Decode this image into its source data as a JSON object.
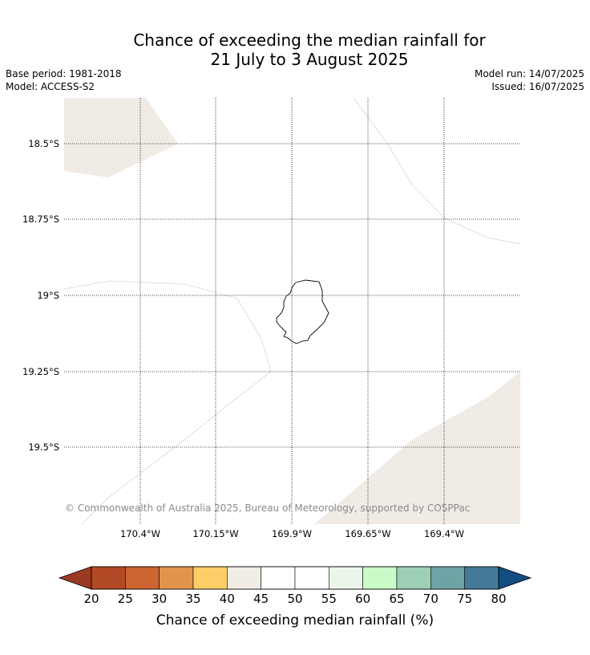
{
  "title": {
    "line1": "Chance of exceeding the median rainfall for",
    "line2": "21 July to 3 August 2025"
  },
  "meta_left": {
    "base_period": "Base period: 1981-2018",
    "model": "Model: ACCESS-S2"
  },
  "meta_right": {
    "model_run": "Model run: 14/07/2025",
    "issued": "Issued: 16/07/2025"
  },
  "map": {
    "lat_labels": [
      "18.5°S",
      "18.75°S",
      "19°S",
      "19.25°S",
      "19.5°S"
    ],
    "lon_labels": [
      "170.4°W",
      "170.15°W",
      "169.9°W",
      "169.65°W",
      "169.4°W"
    ],
    "copyright": "© Commonwealth of Australia 2025, Bureau of Meteorology, supported by COSPPac",
    "colors": {
      "land_shade": "#f0ebe5",
      "boundary": "#d8d8d8",
      "island_outline": "#000000",
      "grid": "#000000"
    }
  },
  "colorbar": {
    "title": "Chance of exceeding median rainfall (%)",
    "ticks": [
      "20",
      "25",
      "30",
      "35",
      "40",
      "45",
      "50",
      "55",
      "60",
      "65",
      "70",
      "75",
      "80"
    ],
    "under_color": "#9b3a22",
    "over_color": "#134d82",
    "segment_colors": [
      "#b24a25",
      "#cc6532",
      "#e2954a",
      "#fcce67",
      "#f1ece6",
      "#ffffff",
      "#ffffff",
      "#ebf6e9",
      "#c9fbc8",
      "#9dcfb7",
      "#6fa4a7",
      "#437a98"
    ]
  }
}
